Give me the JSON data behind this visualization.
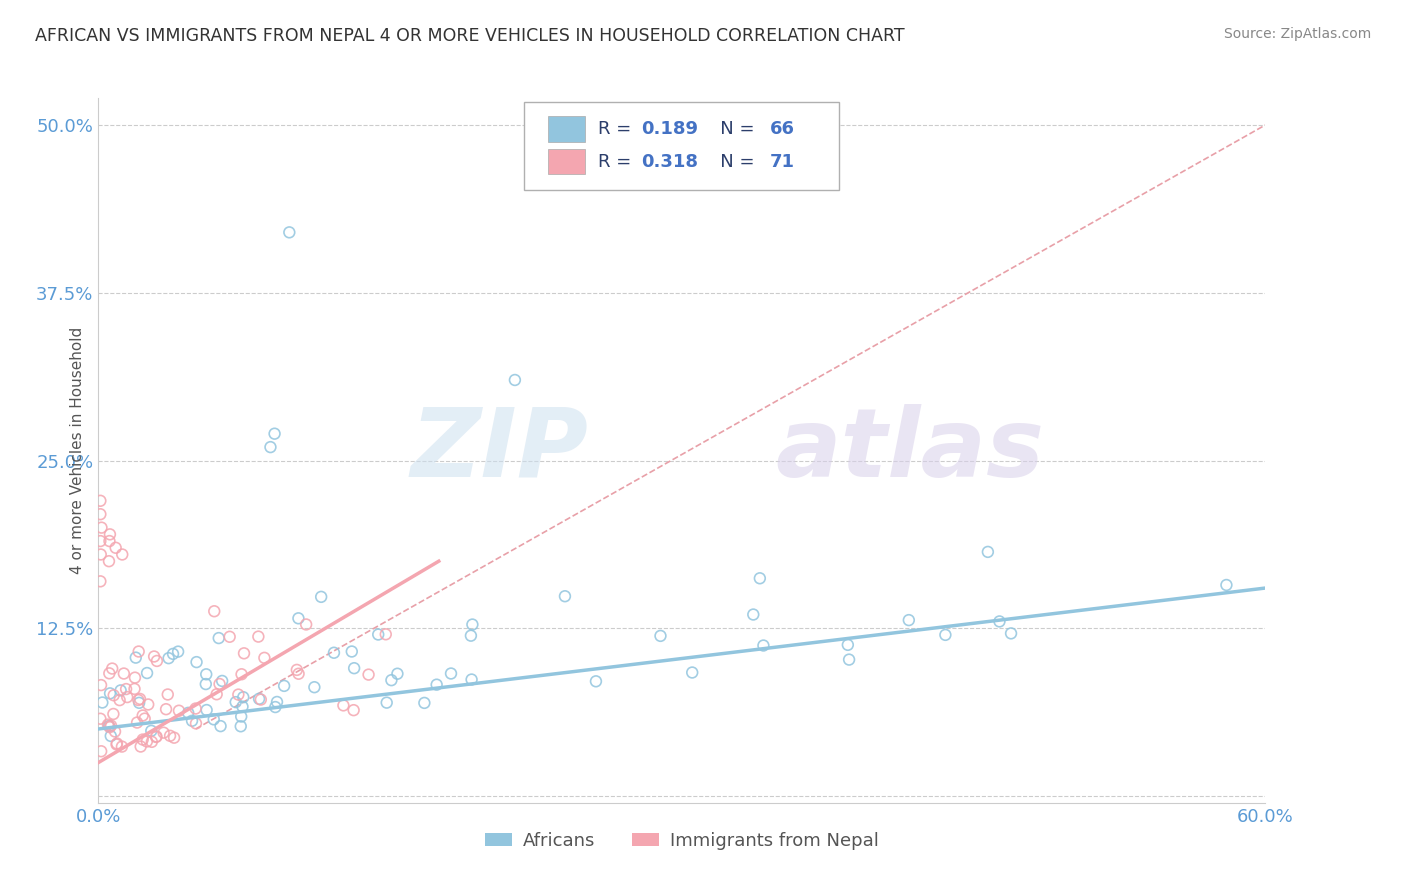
{
  "title": "AFRICAN VS IMMIGRANTS FROM NEPAL 4 OR MORE VEHICLES IN HOUSEHOLD CORRELATION CHART",
  "source": "Source: ZipAtlas.com",
  "ylabel": "4 or more Vehicles in Household",
  "xlim": [
    0.0,
    0.6
  ],
  "ylim": [
    -0.005,
    0.52
  ],
  "yticks": [
    0.0,
    0.125,
    0.25,
    0.375,
    0.5
  ],
  "ytick_labels": [
    "",
    "12.5%",
    "25.0%",
    "37.5%",
    "50.0%"
  ],
  "blue_R": 0.189,
  "blue_N": 66,
  "pink_R": 0.318,
  "pink_N": 71,
  "blue_color": "#92c5de",
  "pink_color": "#f4a6b0",
  "blue_label": "Africans",
  "pink_label": "Immigrants from Nepal",
  "background_color": "#ffffff",
  "grid_color": "#cccccc",
  "axis_label_color": "#5b9bd5",
  "legend_text_color": "#2c3e6b",
  "legend_value_color": "#4472c4"
}
